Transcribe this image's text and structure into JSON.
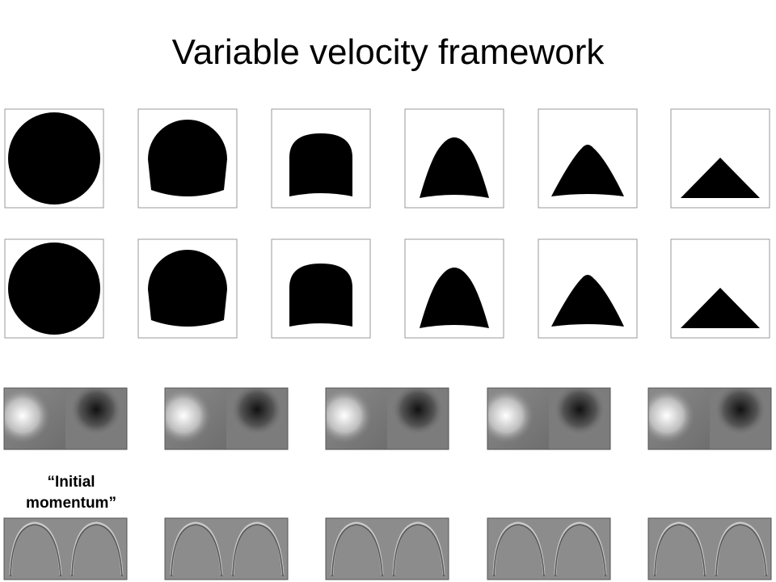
{
  "header": {
    "title": "Variable velocity framework"
  },
  "annotations": {
    "momentum_label": "“Initial momentum”"
  }
}
